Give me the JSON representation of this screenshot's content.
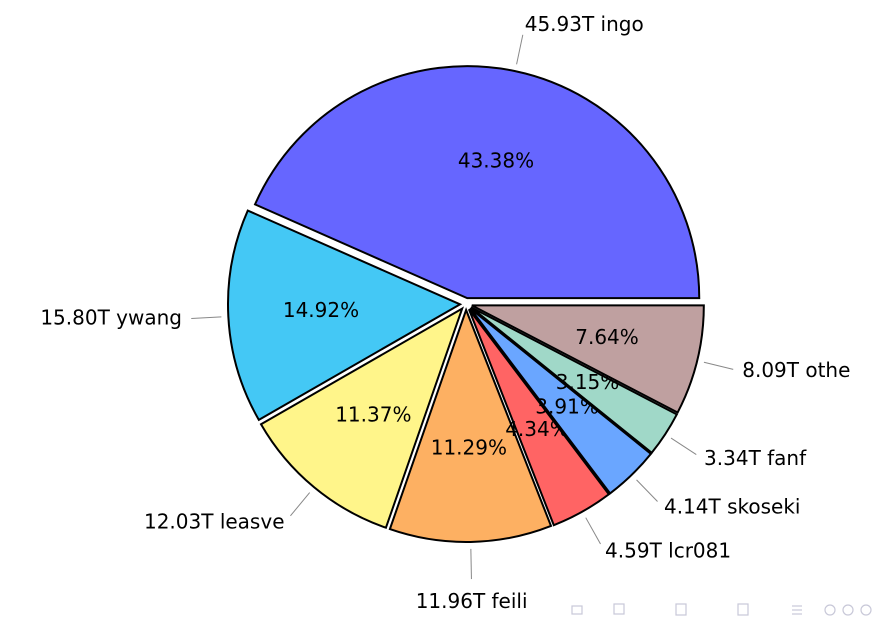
{
  "chart_data": {
    "type": "pie",
    "categories": [
      "45.93T ingo",
      "15.80T ywang",
      "12.03T leasve",
      "11.96T feili",
      "4.59T lcr081",
      "4.14T skoseki",
      "3.34T fanf",
      "8.09T othe"
    ],
    "values": [
      43.38,
      14.92,
      11.37,
      11.29,
      4.34,
      3.91,
      3.15,
      7.64
    ],
    "value_labels": [
      "43.38%",
      "14.92%",
      "11.37%",
      "11.29%",
      "4.34%",
      "3.91%",
      "3.15%",
      "7.64%"
    ],
    "colors": [
      "#6666ff",
      "#44c8f5",
      "#fff58a",
      "#fdb062",
      "#ff6464",
      "#6aa6ff",
      "#a0d8c8",
      "#bfa0a0"
    ]
  }
}
